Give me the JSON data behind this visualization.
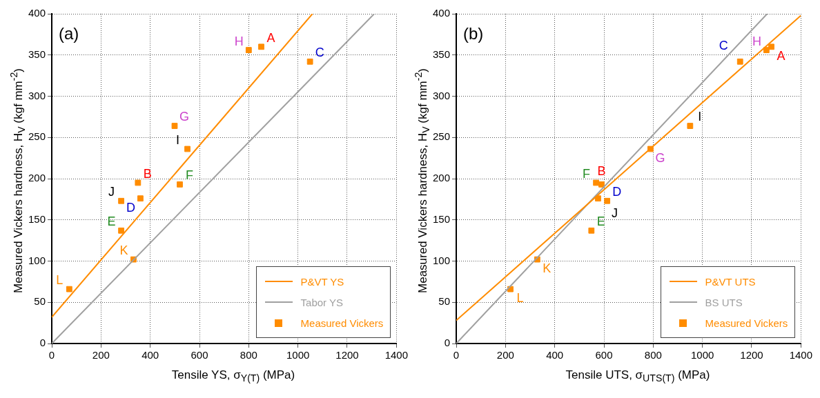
{
  "chart_data": [
    {
      "type": "scatter",
      "xlabel": "Tensile YS, σ$_{Y(T)}$ (MPa)",
      "ylabel": "Measured Vickers hardness, H$_{V}$ (kgf mm$^{-2}$)",
      "xlim": [
        0,
        1400
      ],
      "xticks": [
        0,
        200,
        400,
        600,
        800,
        1000,
        1200,
        1400
      ],
      "ylim": [
        0,
        400
      ],
      "yticks": [
        0,
        50,
        100,
        150,
        200,
        250,
        300,
        350,
        400
      ],
      "grid": true,
      "legend": "bottom right",
      "annotations": [
        "(a)",
        {
          "text": "A",
          "x": 851,
          "y": 360
        },
        {
          "text": "B",
          "x": 350,
          "y": 195
        },
        {
          "text": "C",
          "x": 1049,
          "y": 342
        },
        {
          "text": "D",
          "x": 360,
          "y": 176
        },
        {
          "text": "E",
          "x": 282,
          "y": 137
        },
        {
          "text": "F",
          "x": 520,
          "y": 193
        },
        {
          "text": "G",
          "x": 499,
          "y": 264
        },
        {
          "text": "H",
          "x": 800,
          "y": 356
        },
        {
          "text": "I",
          "x": 551,
          "y": 236
        },
        {
          "text": "J",
          "x": 282,
          "y": 173
        },
        {
          "text": "K",
          "x": 332,
          "y": 102
        },
        {
          "text": "L",
          "x": 71,
          "y": 66
        }
      ],
      "series": [
        {
          "name": "P&VT YS",
          "type": "line",
          "color": "#ff8c00",
          "marker": "none",
          "x": [
            0,
            1059
          ],
          "values": [
            32,
            400
          ]
        },
        {
          "name": "Tabor YS",
          "type": "line",
          "color": "#a0a0a0",
          "marker": "none",
          "x": [
            0,
            1310
          ],
          "values": [
            0,
            400
          ]
        },
        {
          "name": "Measured Vickers",
          "type": "scatter",
          "color": "#ff8c00",
          "marker": "square",
          "x": [
            851,
            350,
            1049,
            360,
            282,
            520,
            499,
            800,
            551,
            282,
            332,
            71
          ],
          "values": [
            360,
            195,
            342,
            176,
            137,
            193,
            264,
            356,
            236,
            173,
            102,
            66
          ]
        }
      ]
    },
    {
      "type": "scatter",
      "xlabel": "Tensile UTS, σ$_{UTS(T)}$ (MPa)",
      "ylabel": "Measured Vickers hardness, H$_{V}$ (kgf mm$^{-2}$)",
      "xlim": [
        0,
        1400
      ],
      "xticks": [
        0,
        200,
        400,
        600,
        800,
        1000,
        1200,
        1400
      ],
      "ylim": [
        0,
        400
      ],
      "yticks": [
        0,
        50,
        100,
        150,
        200,
        250,
        300,
        350,
        400
      ],
      "grid": true,
      "legend": "bottom right",
      "annotations": [
        "(b)",
        {
          "text": "A",
          "x": 1280,
          "y": 360
        },
        {
          "text": "B",
          "x": 590,
          "y": 193
        },
        {
          "text": "C",
          "x": 1153,
          "y": 342
        },
        {
          "text": "D",
          "x": 613,
          "y": 173
        },
        {
          "text": "E",
          "x": 549,
          "y": 137
        },
        {
          "text": "F",
          "x": 568,
          "y": 195
        },
        {
          "text": "G",
          "x": 789,
          "y": 236
        },
        {
          "text": "H",
          "x": 1260,
          "y": 356
        },
        {
          "text": "I",
          "x": 950,
          "y": 264
        },
        {
          "text": "J",
          "x": 576,
          "y": 176
        },
        {
          "text": "K",
          "x": 329,
          "y": 102
        },
        {
          "text": "L",
          "x": 220,
          "y": 66
        }
      ],
      "series": [
        {
          "name": "P&VT UTS",
          "type": "line",
          "color": "#ff8c00",
          "marker": "none",
          "x": [
            0,
            1400
          ],
          "values": [
            28,
            398
          ]
        },
        {
          "name": "BS UTS",
          "type": "line",
          "color": "#a0a0a0",
          "marker": "none",
          "x": [
            0,
            1263
          ],
          "values": [
            0,
            400
          ]
        },
        {
          "name": "Measured Vickers",
          "type": "scatter",
          "color": "#ff8c00",
          "marker": "square",
          "x": [
            1280,
            590,
            1153,
            613,
            549,
            568,
            789,
            1260,
            950,
            576,
            329,
            220
          ],
          "values": [
            360,
            193,
            342,
            173,
            137,
            195,
            236,
            356,
            264,
            176,
            102,
            66
          ]
        }
      ]
    }
  ]
}
